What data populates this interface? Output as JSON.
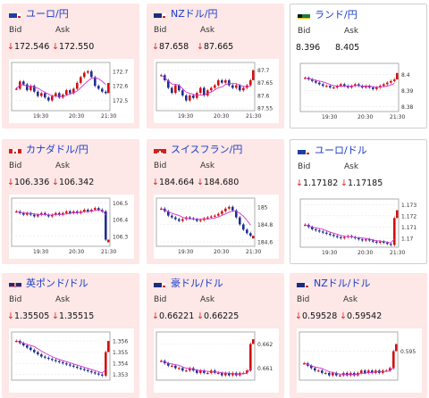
{
  "labels": {
    "bid": "Bid",
    "ask": "Ask"
  },
  "colors": {
    "up_arrow": "#e41b1b",
    "title": "#1a3cc8",
    "card_bg": "#fde7e7",
    "ma": "#d230d2",
    "candle_up": "#d01010",
    "candle_down": "#1f2f8f"
  },
  "cards": [
    {
      "name": "ユーロ/円",
      "flag": "eu-jp-flag-icon",
      "bid": "172.546",
      "ask": "172.550",
      "bid_arrow": "↓",
      "ask_arrow": "↓",
      "bg": "up",
      "chart_data": {
        "type": "candlestick",
        "y_ticks": [
          "172.7",
          "172.6",
          "172.5"
        ],
        "ylim": [
          172.43,
          172.76
        ],
        "x_ticks": [
          "19:30",
          "20:30",
          "21:30"
        ],
        "close": [
          172.58,
          172.63,
          172.61,
          172.57,
          172.6,
          172.56,
          172.53,
          172.55,
          172.52,
          172.5,
          172.53,
          172.55,
          172.52,
          172.54,
          172.57,
          172.55,
          172.58,
          172.62,
          172.66,
          172.69,
          172.7,
          172.66,
          172.6,
          172.58,
          172.56,
          172.55
        ],
        "last": 172.62
      }
    },
    {
      "name": "NZドル/円",
      "flag": "nz-jp-flag-icon",
      "bid": "87.658",
      "ask": "87.665",
      "bid_arrow": "↓",
      "ask_arrow": "↓",
      "bg": "up",
      "chart_data": {
        "type": "candlestick",
        "y_ticks": [
          "87.7",
          "87.65",
          "87.6",
          "87.55"
        ],
        "ylim": [
          87.54,
          87.73
        ],
        "x_ticks": [
          "19:30",
          "20:30",
          "21:30"
        ],
        "close": [
          87.68,
          87.66,
          87.63,
          87.61,
          87.64,
          87.62,
          87.6,
          87.58,
          87.6,
          87.59,
          87.61,
          87.63,
          87.6,
          87.62,
          87.63,
          87.64,
          87.66,
          87.65,
          87.66,
          87.64,
          87.63,
          87.64,
          87.62,
          87.63,
          87.64,
          87.66
        ],
        "last": 87.7
      }
    },
    {
      "name": "ランド/円",
      "flag": "za-jp-flag-icon",
      "bid": "8.396",
      "ask": "8.405",
      "bid_arrow": "",
      "ask_arrow": "",
      "bg": "flat",
      "chart_data": {
        "type": "candlestick",
        "y_ticks": [
          "8.4",
          "8.39",
          "8.38"
        ],
        "ylim": [
          8.377,
          8.407
        ],
        "x_ticks": [
          "19:30",
          "20:30",
          "21:30"
        ],
        "close": [
          8.398,
          8.397,
          8.396,
          8.395,
          8.394,
          8.393,
          8.393,
          8.392,
          8.392,
          8.393,
          8.394,
          8.393,
          8.392,
          8.393,
          8.394,
          8.393,
          8.392,
          8.393,
          8.392,
          8.391,
          8.392,
          8.393,
          8.394,
          8.395,
          8.396,
          8.397
        ],
        "last": 8.401
      }
    },
    {
      "name": "カナダドル/円",
      "flag": "ca-jp-flag-icon",
      "bid": "106.336",
      "ask": "106.342",
      "bid_arrow": "↓",
      "ask_arrow": "↓",
      "bg": "up",
      "chart_data": {
        "type": "candlestick",
        "y_ticks": [
          "106.5",
          "106.4",
          "106.3"
        ],
        "ylim": [
          106.24,
          106.53
        ],
        "x_ticks": [
          "19:30",
          "20:30",
          "21:30"
        ],
        "close": [
          106.45,
          106.44,
          106.43,
          106.44,
          106.43,
          106.42,
          106.43,
          106.44,
          106.43,
          106.42,
          106.43,
          106.44,
          106.43,
          106.44,
          106.45,
          106.44,
          106.45,
          106.44,
          106.45,
          106.46,
          106.45,
          106.46,
          106.47,
          106.46,
          106.45,
          106.28
        ],
        "last": 106.28
      }
    },
    {
      "name": "スイスフラン/円",
      "flag": "ch-jp-flag-icon",
      "bid": "184.664",
      "ask": "184.680",
      "bid_arrow": "↓",
      "ask_arrow": "↓",
      "bg": "up",
      "chart_data": {
        "type": "candlestick",
        "y_ticks": [
          "185",
          "184.8",
          "184.6"
        ],
        "ylim": [
          184.55,
          185.1
        ],
        "x_ticks": [
          "19:30",
          "20:30",
          "21:30"
        ],
        "close": [
          184.98,
          184.95,
          184.9,
          184.88,
          184.86,
          184.84,
          184.86,
          184.88,
          184.87,
          184.86,
          184.84,
          184.85,
          184.87,
          184.88,
          184.89,
          184.9,
          184.92,
          184.95,
          184.98,
          185.0,
          184.96,
          184.88,
          184.8,
          184.74,
          184.7,
          184.67
        ],
        "last": 184.67
      }
    },
    {
      "name": "ユーロ/ドル",
      "flag": "eu-us-flag-icon",
      "bid": "1.17182",
      "ask": "1.17185",
      "bid_arrow": "↓",
      "ask_arrow": "↓",
      "bg": "flat",
      "chart_data": {
        "type": "candlestick",
        "y_ticks": [
          "1.173",
          "1.172",
          "1.171",
          "1.17"
        ],
        "ylim": [
          1.1692,
          1.1735
        ],
        "x_ticks": [
          "19:30",
          "20:30",
          "21:30"
        ],
        "close": [
          1.1712,
          1.171,
          1.1708,
          1.1707,
          1.1706,
          1.1705,
          1.1704,
          1.1703,
          1.1702,
          1.1701,
          1.17,
          1.1701,
          1.1702,
          1.1701,
          1.17,
          1.1699,
          1.1698,
          1.1699,
          1.1698,
          1.1697,
          1.1696,
          1.1697,
          1.1696,
          1.1695,
          1.1694,
          1.1718
        ],
        "last": 1.1725
      }
    },
    {
      "name": "英ポンド/ドル",
      "flag": "gb-us-flag-icon",
      "bid": "1.35505",
      "ask": "1.35515",
      "bid_arrow": "↓",
      "ask_arrow": "↓",
      "bg": "up",
      "chart_data": {
        "type": "candlestick",
        "y_ticks": [
          "1.356",
          "1.355",
          "1.354",
          "1.353"
        ],
        "ylim": [
          1.3525,
          1.3568
        ],
        "x_ticks": [],
        "close": [
          1.356,
          1.3558,
          1.3556,
          1.3554,
          1.3552,
          1.355,
          1.3548,
          1.3546,
          1.3545,
          1.3544,
          1.3543,
          1.3542,
          1.3541,
          1.354,
          1.3539,
          1.3538,
          1.3537,
          1.3536,
          1.3535,
          1.3534,
          1.3533,
          1.3532,
          1.3531,
          1.353,
          1.3529,
          1.355
        ],
        "last": 1.356
      }
    },
    {
      "name": "豪ドル/ドル",
      "flag": "au-us-flag-icon",
      "bid": "0.66221",
      "ask": "0.66225",
      "bid_arrow": "↓",
      "ask_arrow": "↓",
      "bg": "up",
      "chart_data": {
        "type": "candlestick",
        "y_ticks": [
          "0.662",
          "0.661"
        ],
        "ylim": [
          0.6605,
          0.6625
        ],
        "x_ticks": [],
        "close": [
          0.6613,
          0.6612,
          0.6611,
          0.6611,
          0.661,
          0.661,
          0.6609,
          0.6609,
          0.661,
          0.6609,
          0.6608,
          0.6609,
          0.6608,
          0.6608,
          0.6609,
          0.6608,
          0.6608,
          0.6607,
          0.6608,
          0.6607,
          0.6608,
          0.6607,
          0.6608,
          0.6608,
          0.6609,
          0.662
        ],
        "last": 0.6622
      }
    },
    {
      "name": "NZドル/ドル",
      "flag": "nz-us-flag-icon",
      "bid": "0.59528",
      "ask": "0.59542",
      "bid_arrow": "↓",
      "ask_arrow": "↓",
      "bg": "up",
      "chart_data": {
        "type": "candlestick",
        "y_ticks": [
          "0.595"
        ],
        "ylim": [
          0.5938,
          0.5958
        ],
        "x_ticks": [],
        "close": [
          0.5945,
          0.5944,
          0.5943,
          0.5942,
          0.5942,
          0.5941,
          0.5941,
          0.594,
          0.5941,
          0.594,
          0.594,
          0.5941,
          0.594,
          0.5941,
          0.594,
          0.5941,
          0.5942,
          0.5941,
          0.5942,
          0.5941,
          0.5942,
          0.5941,
          0.5942,
          0.5942,
          0.5943,
          0.595
        ],
        "last": 0.5953
      }
    }
  ]
}
